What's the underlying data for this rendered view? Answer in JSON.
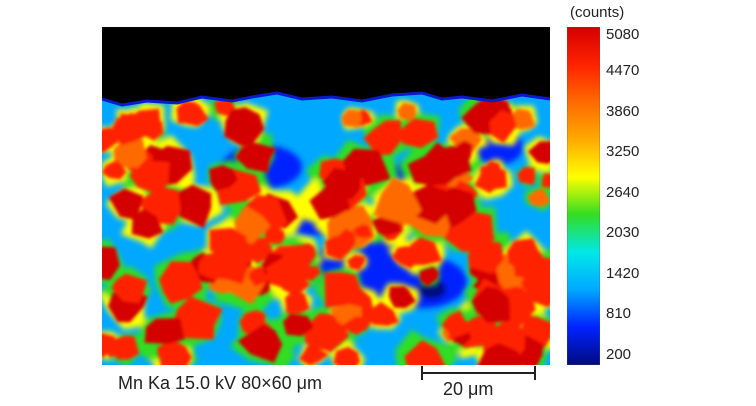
{
  "colorbar": {
    "unit": "(counts)",
    "ticks": [
      "5080",
      "4470",
      "3860",
      "3250",
      "2640",
      "2030",
      "1420",
      "810",
      "200"
    ],
    "max": 5080,
    "min": 200,
    "colors": [
      "#d40000",
      "#ff2200",
      "#ff6a00",
      "#ffaa00",
      "#ffff00",
      "#33dd22",
      "#00e8e8",
      "#00a8ff",
      "#0022ff",
      "#000a80"
    ]
  },
  "caption": "Mn Ka 15.0 kV 80×60 μm",
  "scale_bar": {
    "label": "20 μm"
  },
  "map": {
    "background": "#000000"
  }
}
